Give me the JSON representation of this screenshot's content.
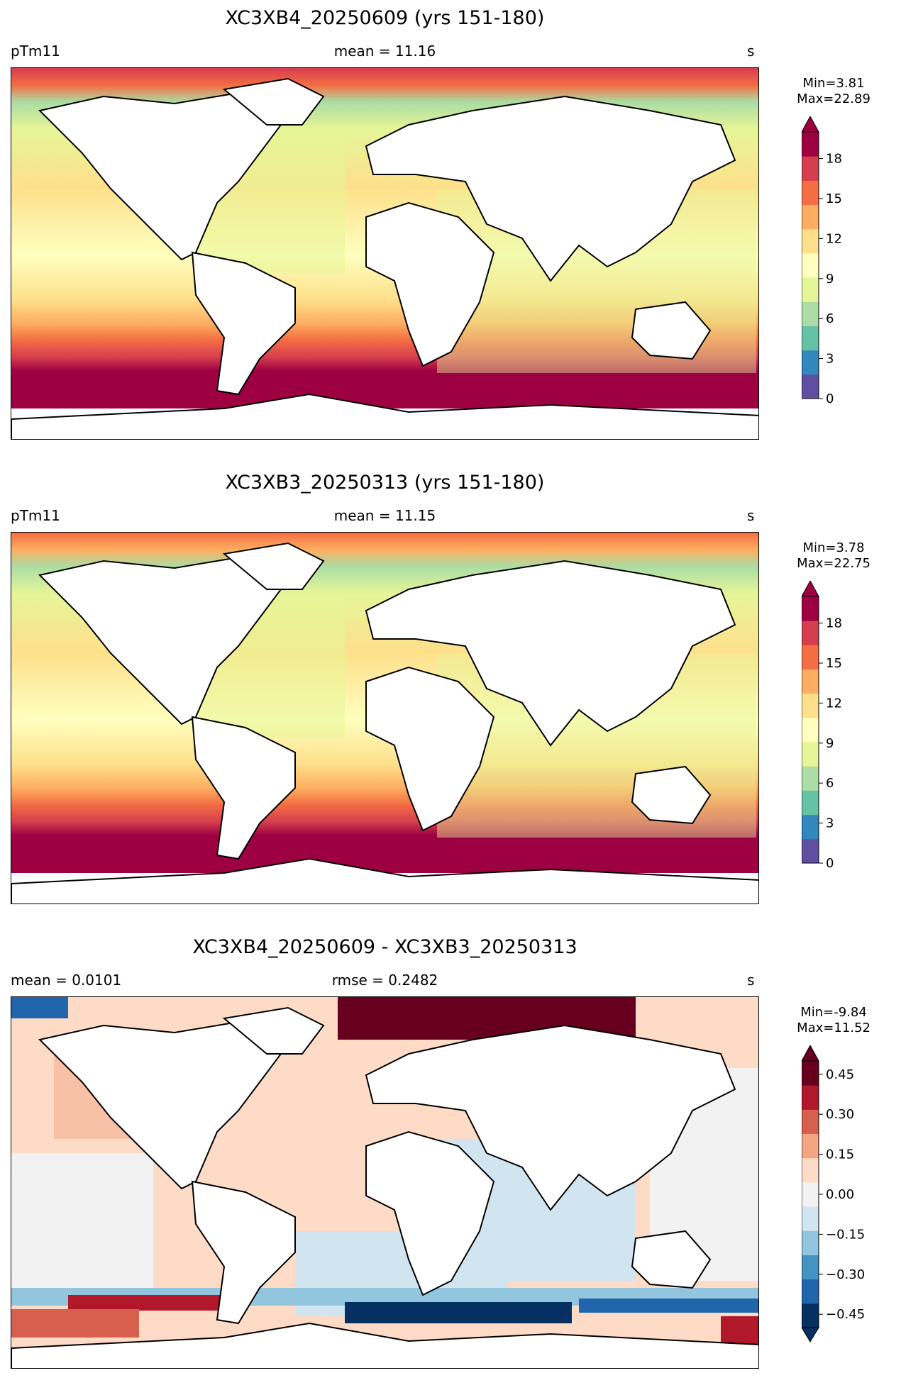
{
  "panels": [
    {
      "id": "top",
      "title": "XC3XB4_20250609 (yrs 151-180)",
      "left_label": "pTm11",
      "center_label": "mean = 11.16",
      "right_label": "s",
      "min_label": "Min=3.81",
      "max_label": "Max=22.89",
      "colorbar": {
        "range": [
          0,
          20
        ],
        "ticks": [
          "0",
          "3",
          "6",
          "9",
          "12",
          "15",
          "18"
        ],
        "tick_values": [
          0,
          3,
          6,
          9,
          12,
          15,
          18
        ],
        "colors": [
          "#5e4fa2",
          "#3288bd",
          "#66c2a5",
          "#abdda4",
          "#e6f598",
          "#ffffbf",
          "#fee08b",
          "#fdae61",
          "#f46d43",
          "#d53e4f",
          "#9e0142"
        ],
        "extend": "max"
      }
    },
    {
      "id": "middle",
      "title": "XC3XB3_20250313 (yrs 151-180)",
      "left_label": "pTm11",
      "center_label": "mean = 11.15",
      "right_label": "s",
      "min_label": "Min=3.78",
      "max_label": "Max=22.75",
      "colorbar": {
        "range": [
          0,
          20
        ],
        "ticks": [
          "0",
          "3",
          "6",
          "9",
          "12",
          "15",
          "18"
        ],
        "tick_values": [
          0,
          3,
          6,
          9,
          12,
          15,
          18
        ],
        "colors": [
          "#5e4fa2",
          "#3288bd",
          "#66c2a5",
          "#abdda4",
          "#e6f598",
          "#ffffbf",
          "#fee08b",
          "#fdae61",
          "#f46d43",
          "#d53e4f",
          "#9e0142"
        ],
        "extend": "max"
      }
    },
    {
      "id": "bottom",
      "title": "XC3XB4_20250609 - XC3XB3_20250313",
      "left_label": "mean = 0.0101",
      "center_label": "rmse = 0.2482",
      "right_label": "s",
      "min_label": "Min=-9.84",
      "max_label": "Max=11.52",
      "colorbar": {
        "range": [
          -0.5,
          0.5
        ],
        "ticks": [
          "−0.45",
          "−0.30",
          "−0.15",
          "0.00",
          "0.15",
          "0.30",
          "0.45"
        ],
        "tick_values": [
          -0.45,
          -0.3,
          -0.15,
          0,
          0.15,
          0.3,
          0.45
        ],
        "colors": [
          "#053061",
          "#2166ac",
          "#4393c3",
          "#92c5de",
          "#d1e5f0",
          "#f2f2f2",
          "#fddbc7",
          "#f4a582",
          "#d6604d",
          "#b2182b",
          "#67001f"
        ],
        "extend": "both"
      }
    }
  ],
  "chart_data": [
    {
      "type": "heatmap",
      "title": "XC3XB4_20250609 (yrs 151-180)",
      "variable": "pTm11",
      "units": "s",
      "mean": 11.16,
      "min": 3.81,
      "max": 22.89,
      "colorbar_range": [
        0,
        20
      ],
      "colorbar_ticks": [
        0,
        3,
        6,
        9,
        12,
        15,
        18
      ],
      "colormap": "Spectral_r"
    },
    {
      "type": "heatmap",
      "title": "XC3XB3_20250313 (yrs 151-180)",
      "variable": "pTm11",
      "units": "s",
      "mean": 11.15,
      "min": 3.78,
      "max": 22.75,
      "colorbar_range": [
        0,
        20
      ],
      "colorbar_ticks": [
        0,
        3,
        6,
        9,
        12,
        15,
        18
      ],
      "colormap": "Spectral_r"
    },
    {
      "type": "heatmap",
      "title": "XC3XB4_20250609 - XC3XB3_20250313",
      "units": "s",
      "mean": 0.0101,
      "rmse": 0.2482,
      "min": -9.84,
      "max": 11.52,
      "colorbar_range": [
        -0.5,
        0.5
      ],
      "colorbar_ticks": [
        -0.45,
        -0.3,
        -0.15,
        0,
        0.15,
        0.3,
        0.45
      ],
      "colormap": "RdBu_r"
    }
  ]
}
